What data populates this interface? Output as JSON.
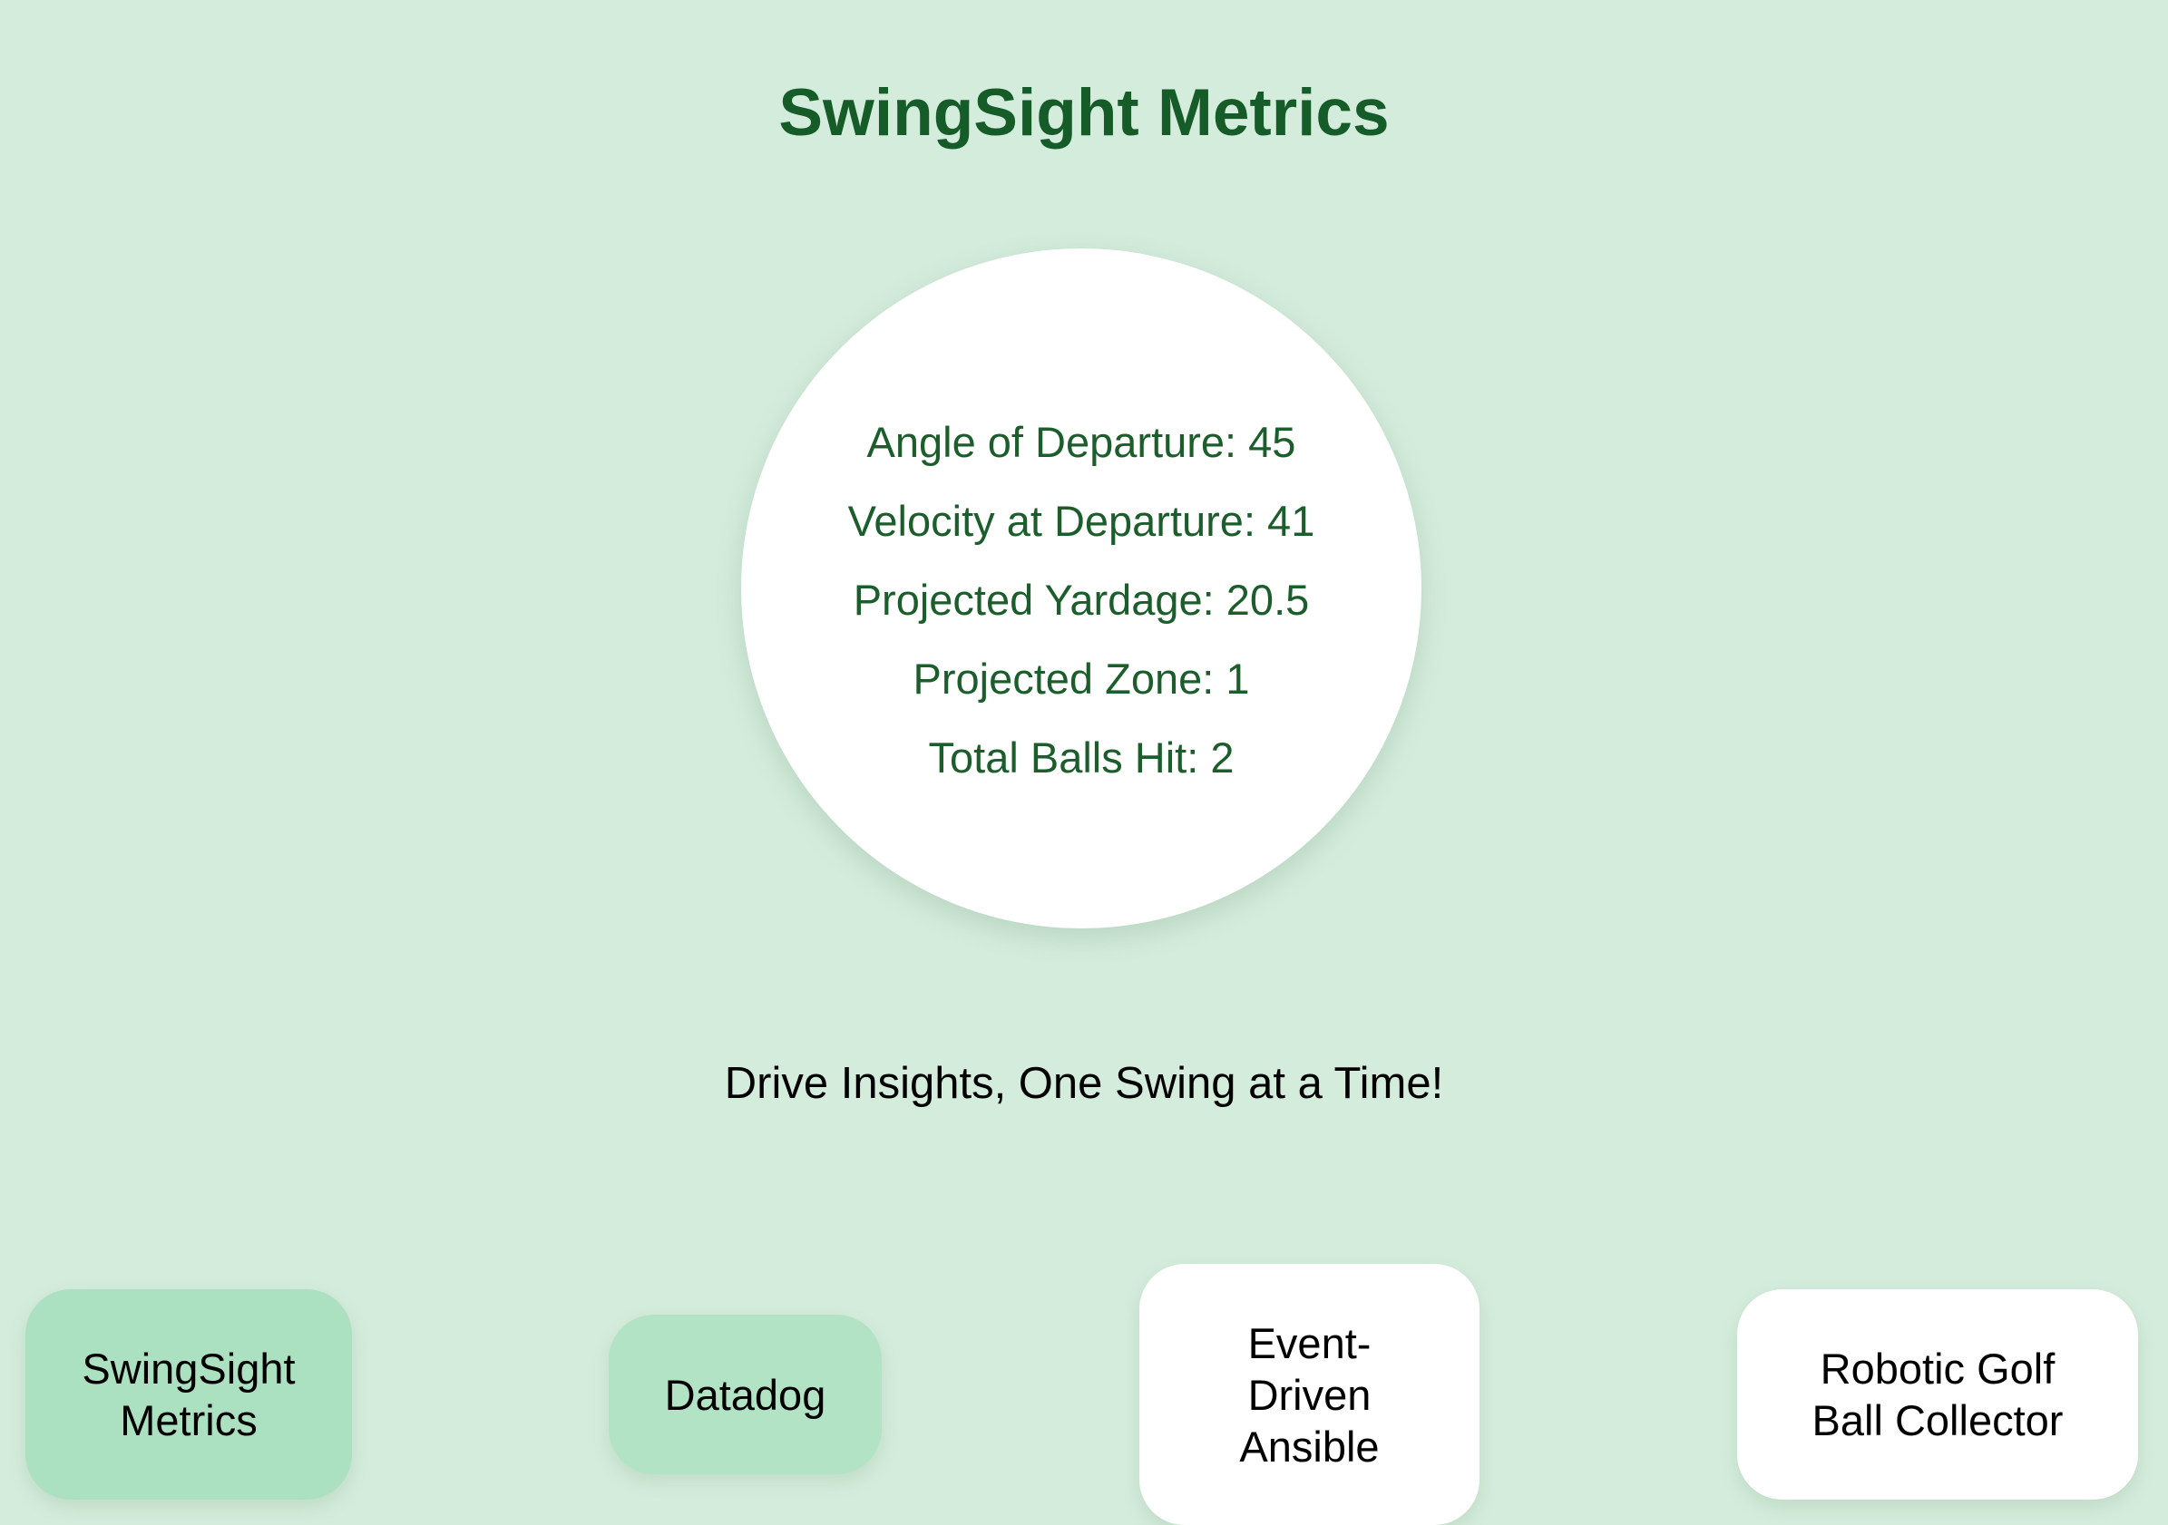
{
  "page": {
    "title": "SwingSight Metrics",
    "tagline": "Drive Insights, One Swing at a Time!"
  },
  "metrics": [
    {
      "label": "Angle of Departure",
      "value": "45",
      "text": "Angle of Departure: 45"
    },
    {
      "label": "Velocity at Departure",
      "value": "41",
      "text": "Velocity at Departure: 41"
    },
    {
      "label": "Projected Yardage",
      "value": "20.5",
      "text": "Projected Yardage: 20.5"
    },
    {
      "label": "Projected Zone",
      "value": "1",
      "text": "Projected Zone: 1"
    },
    {
      "label": "Total Balls Hit",
      "value": "2",
      "text": "Total Balls Hit: 2"
    }
  ],
  "nav": {
    "cards": [
      {
        "label_line1": "SwingSight",
        "label_line2": "Metrics",
        "state": "active"
      },
      {
        "label_line1": "Datadog",
        "label_line2": "",
        "state": "soft"
      },
      {
        "label_line1": "Event-",
        "label_line2": "Driven",
        "label_line3": "Ansible",
        "state": "plain"
      },
      {
        "label_line1": "Robotic Golf",
        "label_line2": "Ball Collector",
        "state": "plain"
      }
    ]
  },
  "colors": {
    "background": "#d4ecdc",
    "title": "#165c28",
    "metric_text": "#1b5e2b",
    "circle": "#ffffff",
    "active_card": "#abe0c0",
    "soft_card": "#b2e3c5",
    "plain_card": "#ffffff",
    "body_text": "#000000"
  }
}
